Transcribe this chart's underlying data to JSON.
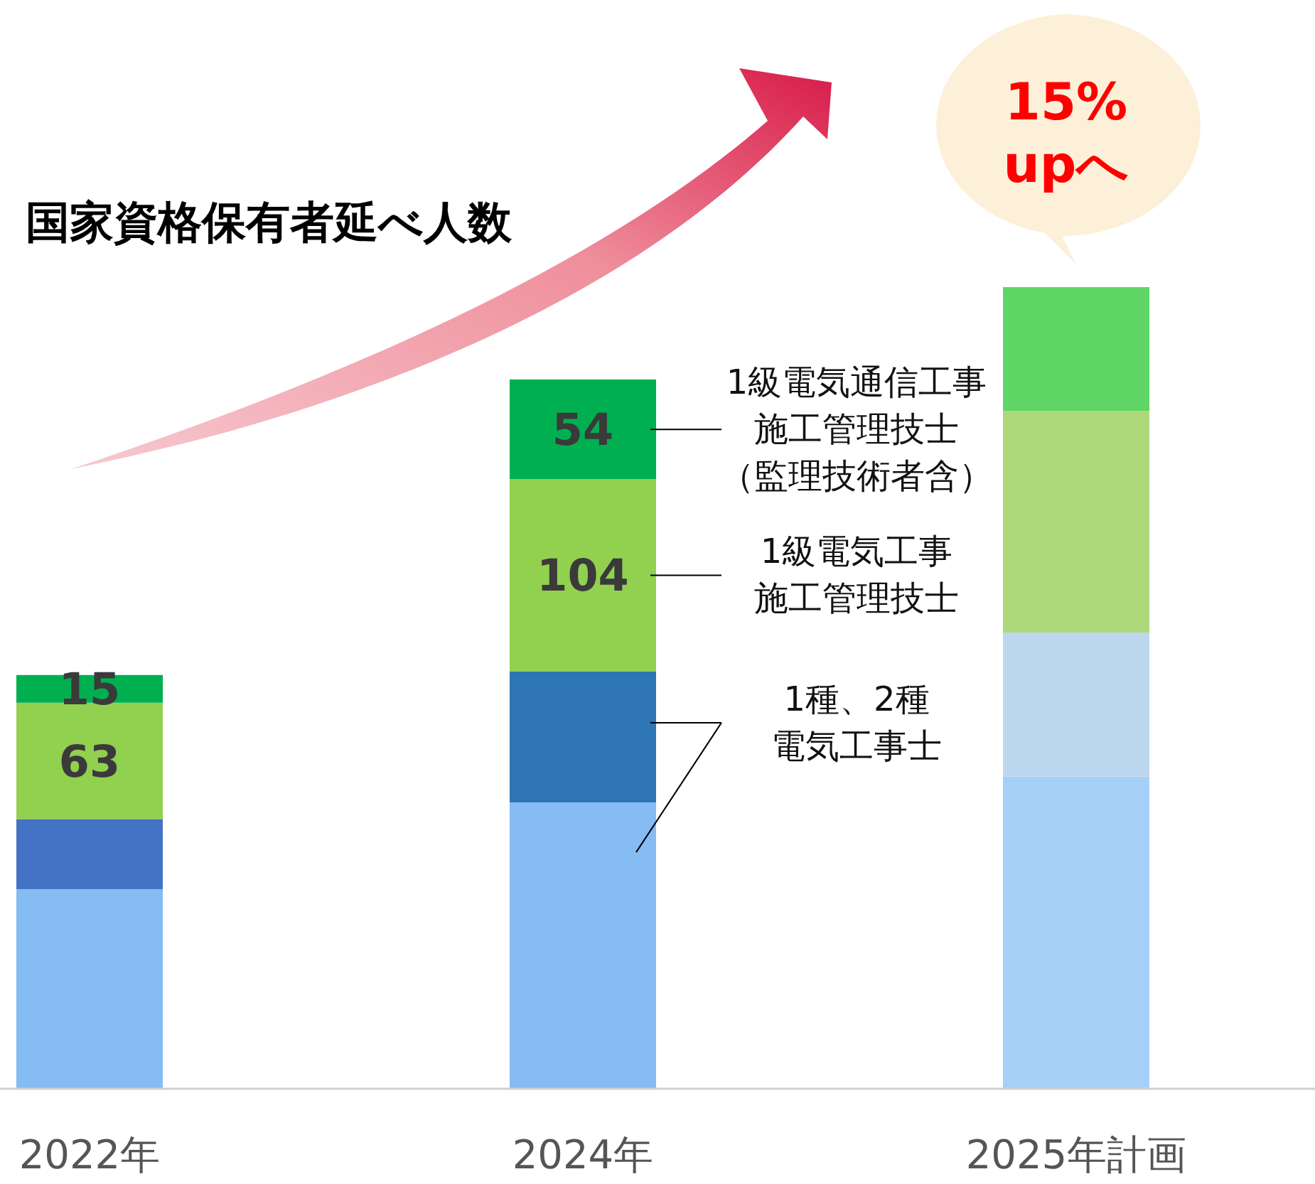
{
  "chart_data": {
    "type": "bar",
    "stacked": true,
    "title": "国家資格保有者延べ人数",
    "categories": [
      "2022年",
      "2024年",
      "2025年計画"
    ],
    "series": [
      {
        "colors": [
          "#85bcf3",
          "#85bcf3",
          "#a6d0f7"
        ],
        "values": [
          108,
          155,
          169
        ]
      },
      {
        "name": "1種、2種電気工事士",
        "colors": [
          "#4472c4",
          "#2e75b6",
          "#bdd7ee"
        ],
        "values": [
          38,
          71,
          78
        ]
      },
      {
        "name": "1級電気工事施工管理技士",
        "colors": [
          "#92d050",
          "#92d050",
          "#add97a"
        ],
        "values": [
          63,
          104,
          120
        ],
        "value_labels": [
          "63",
          "104",
          null
        ]
      },
      {
        "name": "1級電気通信工事施工管理技士（監理技術者含）",
        "colors": [
          "#00b050",
          "#00b050",
          "#5fd665"
        ],
        "values": [
          15,
          54,
          67
        ],
        "value_labels": [
          "15",
          "54",
          null
        ]
      }
    ],
    "annotations": [
      "15%\nupへ"
    ]
  }
}
